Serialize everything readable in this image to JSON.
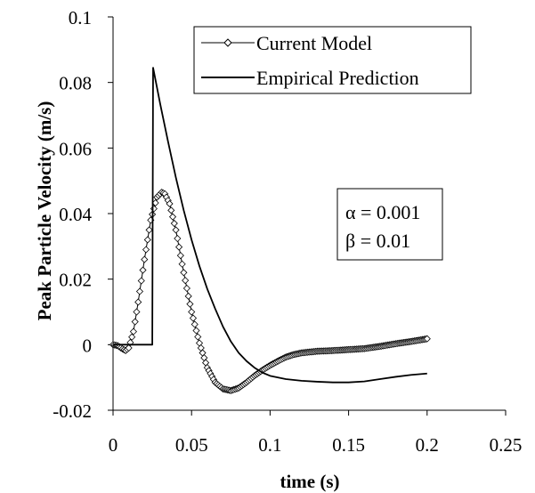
{
  "chart_data": {
    "type": "line",
    "xlabel": "time (s)",
    "ylabel": "Peak Particle Velocity (m/s)",
    "xlim": [
      0,
      0.25
    ],
    "ylim": [
      -0.02,
      0.1
    ],
    "x_ticks": [
      "0",
      "0.05",
      "0.1",
      "0.15",
      "0.2",
      "0.25"
    ],
    "y_ticks": [
      "-0.02",
      "0",
      "0.02",
      "0.04",
      "0.06",
      "0.08",
      "0.1"
    ],
    "grid": false,
    "legend_position": "top-right",
    "series": [
      {
        "name": "Current Model",
        "marker": "diamond",
        "x": [
          0,
          0.003,
          0.006,
          0.008,
          0.01,
          0.013,
          0.016,
          0.02,
          0.024,
          0.028,
          0.031,
          0.033,
          0.036,
          0.04,
          0.045,
          0.05,
          0.055,
          0.06,
          0.065,
          0.07,
          0.075,
          0.08,
          0.085,
          0.09,
          0.095,
          0.1,
          0.105,
          0.11,
          0.115,
          0.12,
          0.13,
          0.14,
          0.15,
          0.16,
          0.17,
          0.18,
          0.19,
          0.2
        ],
        "y": [
          0,
          -0.0003,
          -0.0013,
          -0.0018,
          -0.001,
          0.004,
          0.013,
          0.026,
          0.038,
          0.045,
          0.0465,
          0.046,
          0.043,
          0.035,
          0.022,
          0.01,
          0.0005,
          -0.007,
          -0.0115,
          -0.0135,
          -0.014,
          -0.0132,
          -0.0115,
          -0.0095,
          -0.0078,
          -0.0063,
          -0.005,
          -0.0038,
          -0.003,
          -0.0025,
          -0.002,
          -0.0018,
          -0.0015,
          -0.0012,
          -0.0005,
          0.0003,
          0.001,
          0.0018
        ]
      },
      {
        "name": "Empirical Prediction",
        "marker": "none",
        "x": [
          0,
          0.025,
          0.025,
          0.0255,
          0.03,
          0.035,
          0.04,
          0.045,
          0.05,
          0.055,
          0.06,
          0.065,
          0.07,
          0.075,
          0.08,
          0.085,
          0.09,
          0.095,
          0.1,
          0.11,
          0.12,
          0.13,
          0.14,
          0.15,
          0.16,
          0.17,
          0.18,
          0.19,
          0.2
        ],
        "y": [
          0,
          0,
          0.002,
          0.0845,
          0.0735,
          0.062,
          0.051,
          0.041,
          0.032,
          0.024,
          0.017,
          0.011,
          0.0055,
          0.001,
          -0.0025,
          -0.005,
          -0.007,
          -0.0085,
          -0.0095,
          -0.0105,
          -0.011,
          -0.0113,
          -0.0115,
          -0.0115,
          -0.0112,
          -0.0105,
          -0.0098,
          -0.0092,
          -0.0088
        ]
      }
    ]
  },
  "annotation": {
    "alpha_line": "α = 0.001",
    "beta_line": "β = 0.01"
  }
}
